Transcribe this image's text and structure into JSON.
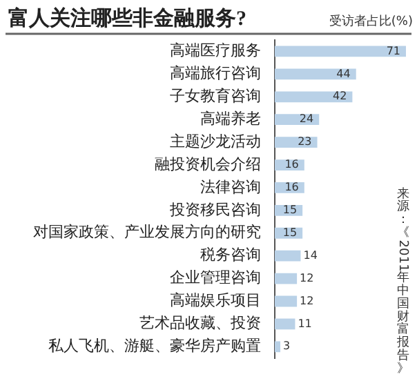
{
  "chart_data": {
    "type": "bar",
    "orientation": "horizontal",
    "title": "富人关注哪些非金融服务?",
    "xlabel": "受访者占比(%)",
    "categories": [
      "高端医疗服务",
      "高端旅行咨询",
      "子女教育咨询",
      "高端养老",
      "主题沙龙活动",
      "融投资机会介绍",
      "法律咨询",
      "投资移民咨询",
      "对国家政策、产业发展方向的研究",
      "税务咨询",
      "企业管理咨询",
      "高端娱乐项目",
      "艺术品收藏、投资",
      "私人飞机、游艇、豪华房产购置"
    ],
    "values": [
      71,
      44,
      42,
      24,
      23,
      16,
      16,
      15,
      15,
      14,
      12,
      12,
      11,
      3
    ],
    "color": "#b9d1e7",
    "xlim": [
      0,
      71
    ],
    "data_labels": true,
    "tick_labels": "y",
    "legend": false,
    "annotations": [
      "来源：《2011年中国财富报告》"
    ]
  }
}
